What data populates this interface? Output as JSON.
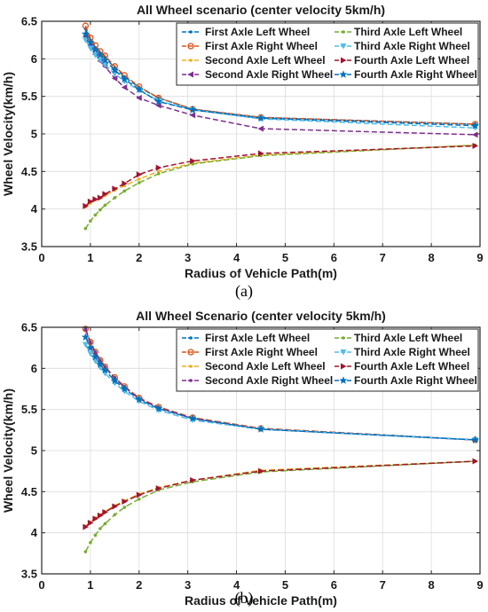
{
  "chart_data": [
    {
      "type": "line",
      "title": "All Wheel scenario (center velocity 5km/h)",
      "xlabel": "Radius of Vehicle Path(m)",
      "ylabel": "Wheel Velocity(km/h)",
      "caption": "(a)",
      "xlim": [
        0,
        9
      ],
      "ylim": [
        3.5,
        6.5
      ],
      "xticks": [
        "0",
        "1",
        "2",
        "3",
        "4",
        "5",
        "6",
        "7",
        "8",
        "9"
      ],
      "yticks": [
        "3.5",
        "4",
        "4.5",
        "5",
        "5.5",
        "6",
        "6.5"
      ],
      "grid": true,
      "legend_position": "top-right",
      "series": [
        {
          "name": "First Axle Left Wheel",
          "color": "#0072BD",
          "marker": "dot",
          "dash": "6,3",
          "x": [
            0.9,
            1.0,
            1.1,
            1.2,
            1.3,
            1.5,
            1.7,
            2.0,
            2.4,
            3.1,
            4.5,
            8.9
          ],
          "y": [
            6.4,
            6.25,
            6.15,
            6.08,
            6.02,
            5.88,
            5.76,
            5.62,
            5.48,
            5.33,
            5.22,
            5.13
          ]
        },
        {
          "name": "First Axle Right Wheel",
          "color": "#D95319",
          "marker": "circle",
          "dash": "6,3",
          "x": [
            0.9,
            1.0,
            1.1,
            1.2,
            1.3,
            1.5,
            1.7,
            2.0,
            2.4,
            3.1,
            4.5,
            8.9
          ],
          "y": [
            6.44,
            6.28,
            6.18,
            6.1,
            6.04,
            5.9,
            5.78,
            5.63,
            5.48,
            5.33,
            5.22,
            5.13
          ]
        },
        {
          "name": "Second Axle Left Wheel",
          "color": "#EDB120",
          "marker": "dot",
          "dash": "6,3",
          "x": [
            0.9,
            1.0,
            1.1,
            1.2,
            1.3,
            1.5,
            1.7,
            2.0,
            2.4,
            3.1,
            4.5,
            8.9
          ],
          "y": [
            4.03,
            4.08,
            4.12,
            4.15,
            4.18,
            4.25,
            4.31,
            4.4,
            4.5,
            4.61,
            4.72,
            4.85
          ]
        },
        {
          "name": "Second Axle Right Wheel",
          "color": "#7E2F8E",
          "marker": "triangle-left",
          "dash": "6,3",
          "x": [
            0.9,
            1.0,
            1.1,
            1.2,
            1.3,
            1.5,
            1.7,
            2.0,
            2.4,
            3.1,
            4.5,
            8.9
          ],
          "y": [
            6.3,
            6.17,
            6.06,
            5.97,
            5.9,
            5.74,
            5.62,
            5.48,
            5.38,
            5.25,
            5.07,
            4.99
          ]
        },
        {
          "name": "Third Axle Left Wheel",
          "color": "#77AC30",
          "marker": "dot",
          "dash": "6,3",
          "x": [
            0.9,
            1.0,
            1.1,
            1.2,
            1.3,
            1.5,
            1.7,
            2.0,
            2.4,
            3.1,
            4.5,
            8.9
          ],
          "y": [
            3.74,
            3.84,
            3.92,
            3.99,
            4.05,
            4.15,
            4.24,
            4.35,
            4.47,
            4.6,
            4.71,
            4.85
          ]
        },
        {
          "name": "Third Axle Right Wheel",
          "color": "#4DBEEE",
          "marker": "triangle-down",
          "dash": "6,3",
          "x": [
            0.9,
            1.0,
            1.1,
            1.2,
            1.3,
            1.5,
            1.7,
            2.0,
            2.4,
            3.1,
            4.5,
            8.9
          ],
          "y": [
            6.25,
            6.14,
            6.05,
            5.98,
            5.92,
            5.8,
            5.7,
            5.58,
            5.44,
            5.32,
            5.2,
            5.08
          ]
        },
        {
          "name": "Fourth Axle Left Wheel",
          "color": "#A2142F",
          "marker": "triangle-right",
          "dash": "6,3",
          "x": [
            0.9,
            1.0,
            1.1,
            1.2,
            1.3,
            1.5,
            1.7,
            2.0,
            2.4,
            3.1,
            4.5,
            8.9
          ],
          "y": [
            4.04,
            4.1,
            4.13,
            4.15,
            4.2,
            4.27,
            4.34,
            4.46,
            4.55,
            4.64,
            4.74,
            4.84
          ]
        },
        {
          "name": "Fourth Axle Right Wheel",
          "color": "#0072BD",
          "marker": "star",
          "dash": "6,3",
          "x": [
            0.9,
            1.0,
            1.1,
            1.2,
            1.3,
            1.5,
            1.7,
            2.0,
            2.4,
            3.1,
            4.5,
            8.9
          ],
          "y": [
            6.33,
            6.22,
            6.12,
            6.05,
            5.98,
            5.85,
            5.73,
            5.59,
            5.43,
            5.32,
            5.21,
            5.11
          ]
        }
      ]
    },
    {
      "type": "line",
      "title": "All Wheel Scenario (center velocity 5km/h)",
      "xlabel": "Radius of Vehicle Path(m)",
      "ylabel": "Wheel Velocity(km/h)",
      "caption": "(b)",
      "xlim": [
        0,
        9
      ],
      "ylim": [
        3.5,
        6.5
      ],
      "xticks": [
        "0",
        "1",
        "2",
        "3",
        "4",
        "5",
        "6",
        "7",
        "8",
        "9"
      ],
      "yticks": [
        "3.5",
        "4",
        "4.5",
        "5",
        "5.5",
        "6",
        "6.5"
      ],
      "grid": true,
      "legend_position": "top-right",
      "series": [
        {
          "name": "First Axle Left Wheel",
          "color": "#0072BD",
          "marker": "dot",
          "dash": "7,3",
          "x": [
            0.9,
            1.0,
            1.1,
            1.2,
            1.3,
            1.5,
            1.7,
            2.0,
            2.4,
            3.1,
            4.5,
            8.9
          ],
          "y": [
            6.48,
            6.32,
            6.2,
            6.1,
            6.02,
            5.89,
            5.78,
            5.64,
            5.53,
            5.4,
            5.27,
            5.13
          ]
        },
        {
          "name": "First Axle Right Wheel",
          "color": "#D95319",
          "marker": "circle",
          "dash": "7,3",
          "x": [
            0.9,
            1.0,
            1.1,
            1.2,
            1.3,
            1.5,
            1.7,
            2.0,
            2.4,
            3.1,
            4.5,
            8.9
          ],
          "y": [
            6.48,
            6.32,
            6.2,
            6.1,
            6.02,
            5.89,
            5.78,
            5.64,
            5.53,
            5.4,
            5.27,
            5.13
          ]
        },
        {
          "name": "Second Axle Left Wheel",
          "color": "#EDB120",
          "marker": "dot",
          "dash": "7,3",
          "x": [
            0.9,
            1.0,
            1.1,
            1.2,
            1.3,
            1.5,
            1.7,
            2.0,
            2.4,
            3.1,
            4.5,
            8.9
          ],
          "y": [
            4.08,
            4.13,
            4.18,
            4.22,
            4.26,
            4.33,
            4.39,
            4.47,
            4.55,
            4.64,
            4.76,
            4.87
          ]
        },
        {
          "name": "Second Axle Right Wheel",
          "color": "#7E2F8E",
          "marker": "dot",
          "dash": "7,3",
          "x": [
            0.9,
            1.0,
            1.1,
            1.2,
            1.3,
            1.5,
            1.7,
            2.0,
            2.4,
            3.1,
            4.5,
            8.9
          ],
          "y": [
            6.47,
            6.31,
            6.19,
            6.09,
            6.01,
            5.88,
            5.77,
            5.63,
            5.52,
            5.39,
            5.26,
            5.13
          ]
        },
        {
          "name": "Third Axle Left Wheel",
          "color": "#77AC30",
          "marker": "dot",
          "dash": "7,3",
          "x": [
            0.9,
            1.0,
            1.1,
            1.2,
            1.3,
            1.5,
            1.7,
            2.0,
            2.4,
            3.1,
            4.5,
            8.9
          ],
          "y": [
            3.77,
            3.88,
            3.97,
            4.05,
            4.11,
            4.22,
            4.31,
            4.41,
            4.52,
            4.62,
            4.74,
            4.87
          ]
        },
        {
          "name": "Third Axle Right Wheel",
          "color": "#4DBEEE",
          "marker": "triangle-down",
          "dash": "7,3",
          "x": [
            0.9,
            1.0,
            1.1,
            1.2,
            1.3,
            1.5,
            1.7,
            2.0,
            2.4,
            3.1,
            4.5,
            8.9
          ],
          "y": [
            6.29,
            6.18,
            6.09,
            6.01,
            5.94,
            5.82,
            5.72,
            5.6,
            5.49,
            5.37,
            5.26,
            5.13
          ]
        },
        {
          "name": "Fourth Axle Left Wheel",
          "color": "#A2142F",
          "marker": "triangle-right",
          "dash": "7,3",
          "x": [
            0.9,
            1.0,
            1.1,
            1.2,
            1.3,
            1.5,
            1.7,
            2.0,
            2.4,
            3.1,
            4.5,
            8.9
          ],
          "y": [
            4.07,
            4.12,
            4.17,
            4.21,
            4.25,
            4.32,
            4.38,
            4.46,
            4.54,
            4.64,
            4.75,
            4.87
          ]
        },
        {
          "name": "Fourth Axle Right Wheel",
          "color": "#0072BD",
          "marker": "star",
          "dash": "7,3",
          "x": [
            0.9,
            1.0,
            1.1,
            1.2,
            1.3,
            1.5,
            1.7,
            2.0,
            2.4,
            3.1,
            4.5,
            8.9
          ],
          "y": [
            6.38,
            6.25,
            6.14,
            6.05,
            5.98,
            5.85,
            5.75,
            5.62,
            5.51,
            5.39,
            5.26,
            5.13
          ]
        }
      ]
    }
  ]
}
